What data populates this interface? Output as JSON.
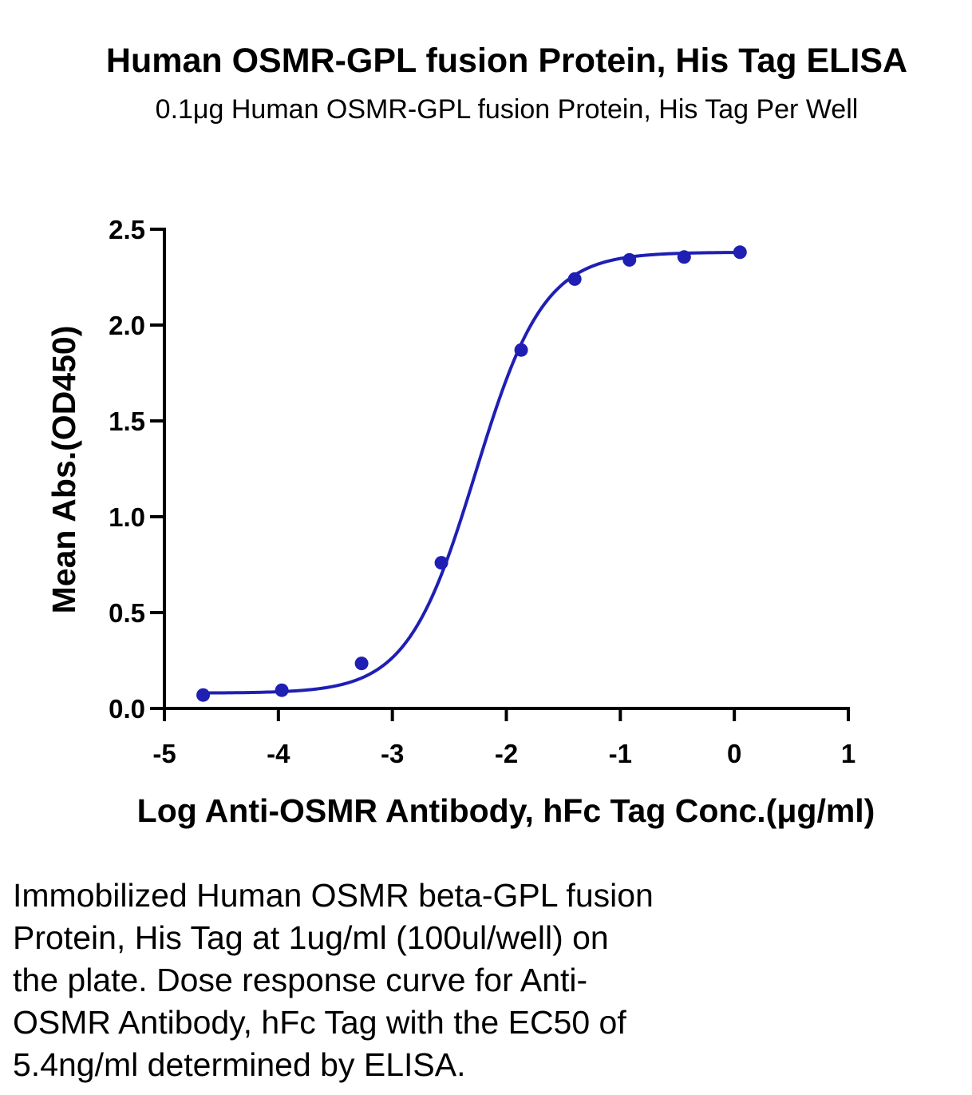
{
  "chart_data": {
    "type": "scatter",
    "title": "Human OSMR-GPL fusion Protein, His Tag ELISA",
    "subtitle": "0.1μg Human OSMR-GPL fusion Protein, His Tag Per Well",
    "xlabel": "Log Anti-OSMR Antibody, hFc Tag Conc.(μg/ml)",
    "ylabel": "Mean Abs.(OD450)",
    "xlim": [
      -5,
      1
    ],
    "ylim": [
      0,
      2.5
    ],
    "x_ticks": [
      "-5",
      "-4",
      "-3",
      "-2",
      "-1",
      "0",
      "1"
    ],
    "y_ticks": [
      "0.0",
      "0.5",
      "1.0",
      "1.5",
      "2.0",
      "2.5"
    ],
    "series": [
      {
        "points": [
          {
            "x": -4.66,
            "y": 0.07
          },
          {
            "x": -3.97,
            "y": 0.095
          },
          {
            "x": -3.27,
            "y": 0.235
          },
          {
            "x": -2.57,
            "y": 0.76
          },
          {
            "x": -1.87,
            "y": 1.87
          },
          {
            "x": -1.4,
            "y": 2.24
          },
          {
            "x": -0.92,
            "y": 2.34
          },
          {
            "x": -0.44,
            "y": 2.355
          },
          {
            "x": 0.05,
            "y": 2.38
          }
        ],
        "fit": {
          "model": "4PL",
          "bottom": 0.08,
          "top": 2.38,
          "logEC50": -2.27,
          "hill": 1.45,
          "x_range": [
            -4.66,
            0.05
          ]
        }
      }
    ],
    "colors": {
      "series": "#1f1fb4",
      "axis": "#000000"
    },
    "grid": false,
    "legend": "none"
  },
  "caption": [
    "Immobilized Human OSMR beta-GPL fusion",
    "Protein, His Tag at 1ug/ml (100ul/well) on",
    "the plate. Dose response curve for Anti-",
    "OSMR Antibody, hFc Tag with the EC50 of",
    "5.4ng/ml determined by ELISA."
  ]
}
